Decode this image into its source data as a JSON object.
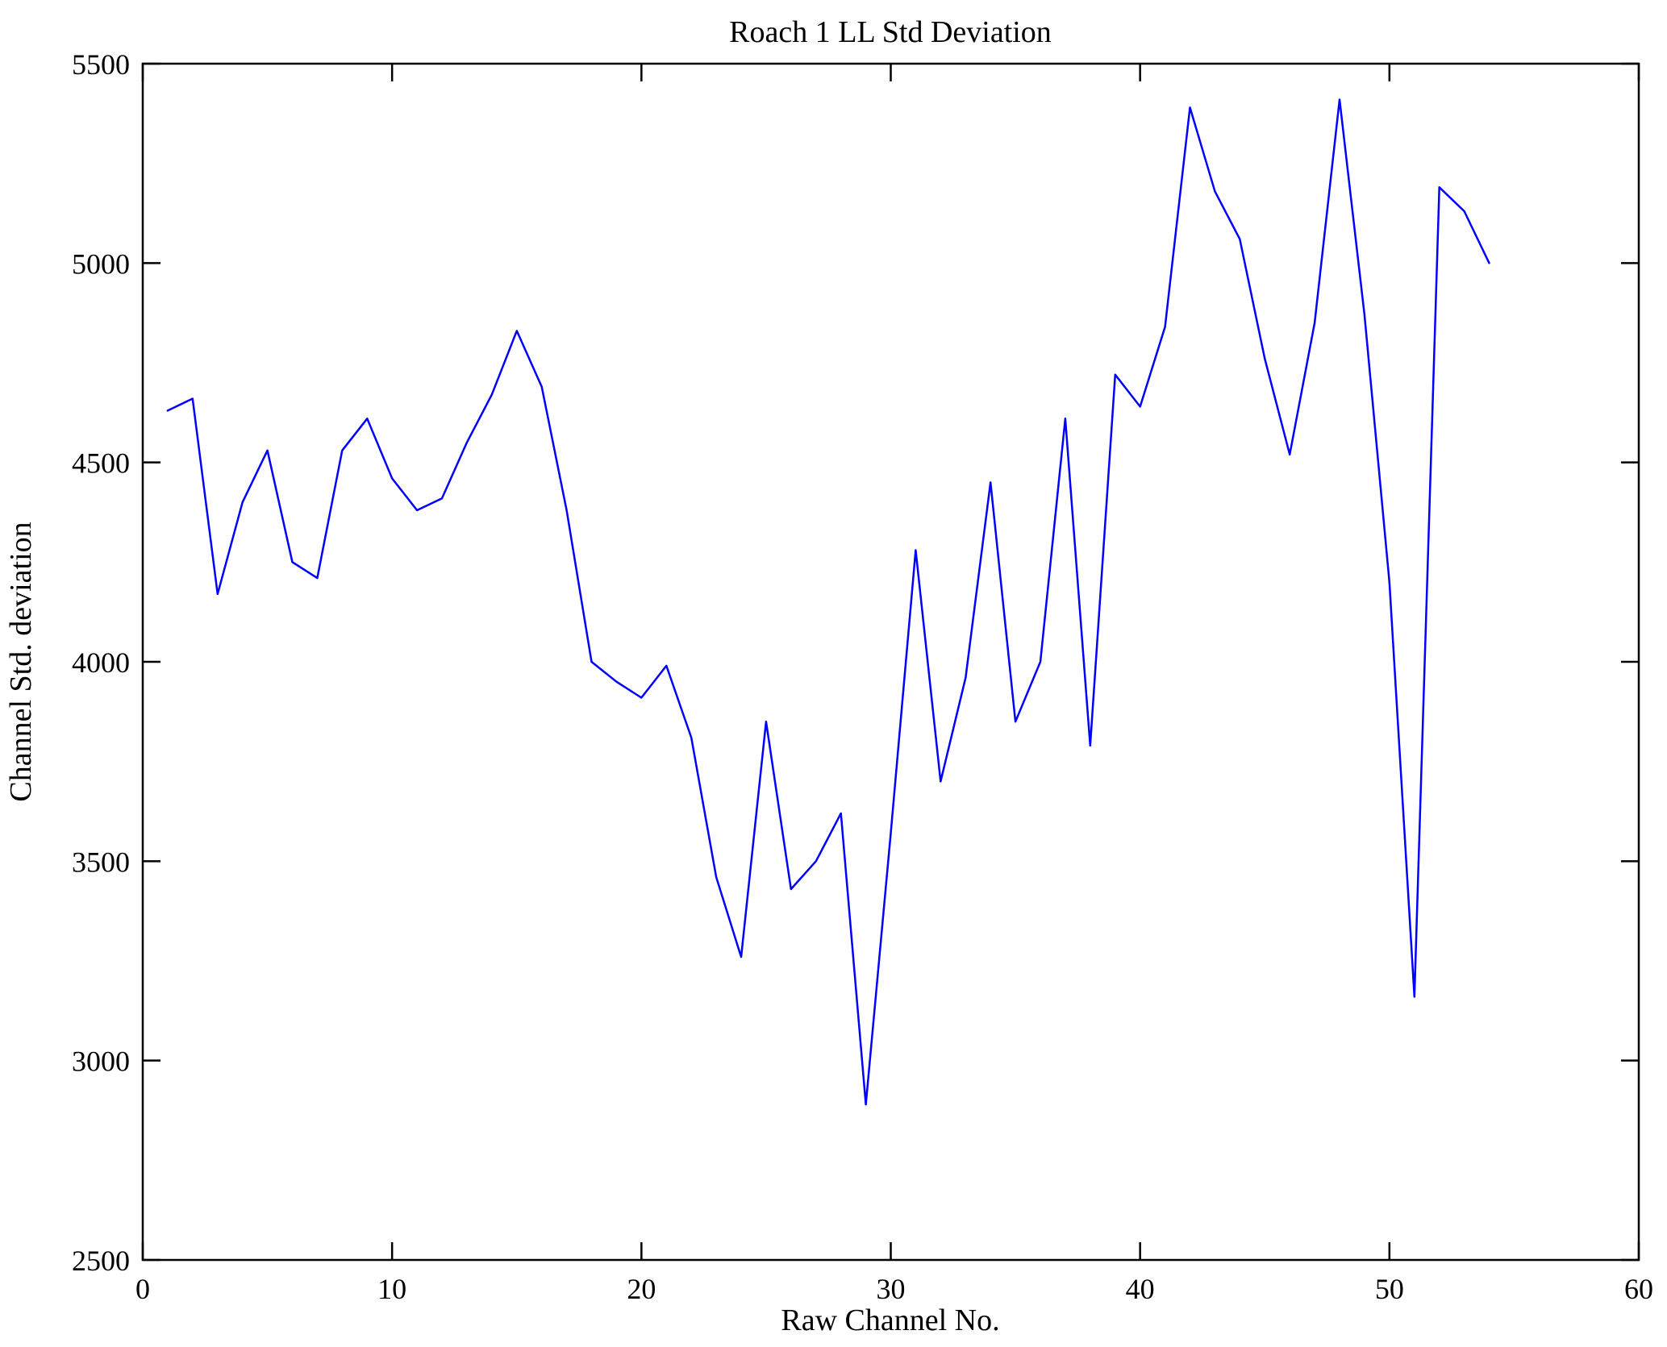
{
  "chart_data": {
    "type": "line",
    "title": "Roach 1 LL Std Deviation",
    "xlabel": "Raw Channel No.",
    "ylabel": "Channel Std. deviation",
    "xlim": [
      0,
      60
    ],
    "ylim": [
      2500,
      5500
    ],
    "x_ticks": [
      0,
      10,
      20,
      30,
      40,
      50,
      60
    ],
    "y_ticks": [
      2500,
      3000,
      3500,
      4000,
      4500,
      5000,
      5500
    ],
    "grid": false,
    "legend": "none",
    "line_color": "#0000FF",
    "axes_color": "#000000",
    "background_color": "#FFFFFF",
    "series": [
      {
        "name": "channel-std-deviation",
        "x": [
          1,
          2,
          3,
          4,
          5,
          6,
          7,
          8,
          9,
          10,
          11,
          12,
          13,
          14,
          15,
          16,
          17,
          18,
          19,
          20,
          21,
          22,
          23,
          24,
          25,
          26,
          27,
          28,
          29,
          30,
          31,
          32,
          33,
          34,
          35,
          36,
          37,
          38,
          39,
          40,
          41,
          42,
          43,
          44,
          45,
          46,
          47,
          48,
          49,
          50,
          51,
          52,
          53,
          54
        ],
        "y": [
          4630,
          4660,
          4170,
          4400,
          4530,
          4250,
          4210,
          4530,
          4610,
          4460,
          4380,
          4410,
          4550,
          4670,
          4830,
          4690,
          4380,
          4000,
          3950,
          3910,
          3990,
          3810,
          3460,
          3260,
          3850,
          3430,
          3500,
          3620,
          2890,
          3570,
          4280,
          3700,
          3960,
          4450,
          3850,
          4000,
          4610,
          3790,
          4720,
          4640,
          4840,
          5390,
          5180,
          5060,
          4760,
          4520,
          4850,
          5410,
          4870,
          4200,
          3160,
          5190,
          5130,
          5000
        ]
      }
    ]
  }
}
